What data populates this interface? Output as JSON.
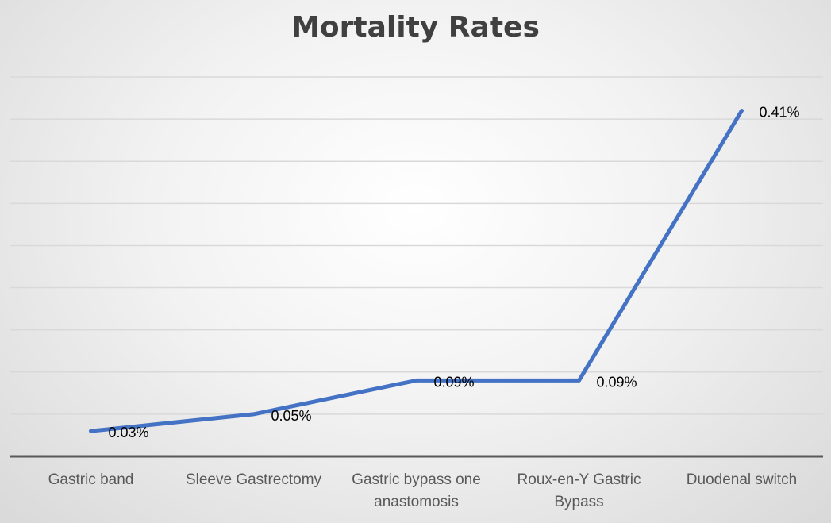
{
  "chart_data": {
    "type": "line",
    "title": "Mortality Rates",
    "categories": [
      "Gastric band",
      "Sleeve Gastrectomy",
      "Gastric bypass one anastomosis",
      "Roux-en-Y Gastric Bypass",
      "Duodenal switch"
    ],
    "category_lines": [
      [
        "Gastric band"
      ],
      [
        "Sleeve Gastrectomy"
      ],
      [
        "Gastric bypass one",
        "anastomosis"
      ],
      [
        "Roux-en-Y Gastric",
        "Bypass"
      ],
      [
        "Duodenal switch"
      ]
    ],
    "series": [
      {
        "name": "Mortality Rate",
        "values": [
          0.03,
          0.05,
          0.09,
          0.09,
          0.41
        ]
      }
    ],
    "data_labels": [
      "0.03%",
      "0.05%",
      "0.09%",
      "0.09%",
      "0.41%"
    ],
    "xlabel": "",
    "ylabel": "",
    "ylim": [
      0,
      0.45
    ],
    "y_gridline_step": 0.05,
    "grid": true,
    "legend": "none",
    "colors": {
      "line": "#4472C4",
      "grid": "#d9d9d9",
      "axis": "#595959"
    }
  }
}
